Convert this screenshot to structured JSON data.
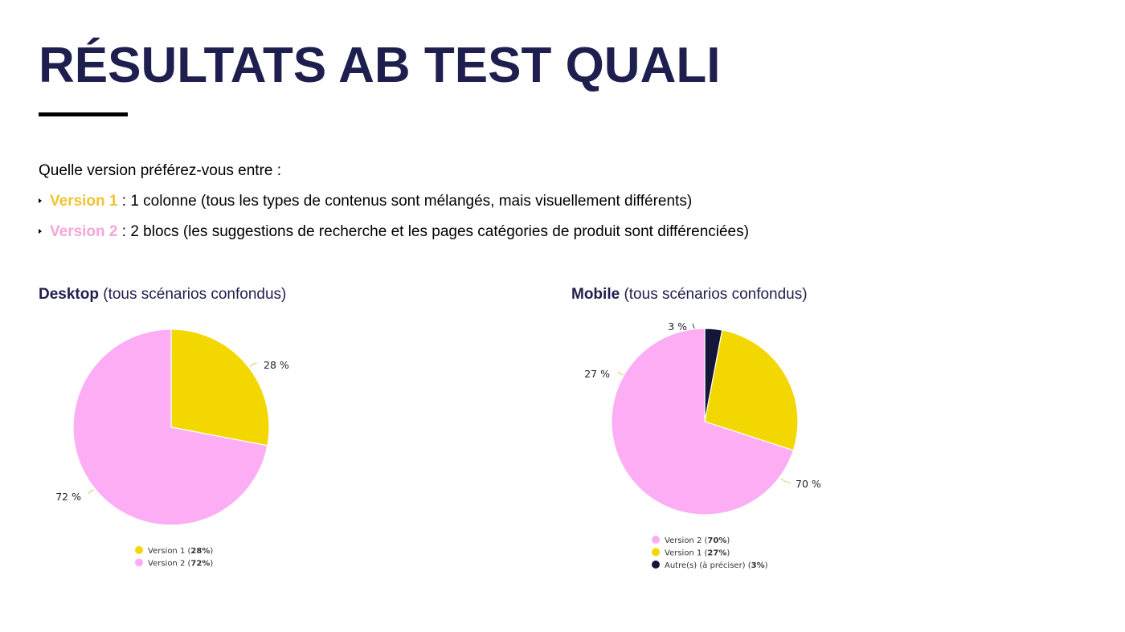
{
  "slide": {
    "title": "RÉSULTATS AB TEST QUALI",
    "question": "Quelle version préférez-vous entre :",
    "options": [
      {
        "label": "Version 1",
        "text": " : 1 colonne (tous les types de contenus sont mélangés, mais visuellement différents)",
        "color": "#f1c232"
      },
      {
        "label": "Version 2",
        "text": " : 2 blocs (les suggestions de recherche et les pages catégories de produit sont différenciées)",
        "color": "#f4a6d7"
      }
    ]
  },
  "colors": {
    "title": "#1f1f4f",
    "version1_slice": "#f2d800",
    "version2_slice": "#fdadf4",
    "autre_slice": "#16163a",
    "leader": "#d9c96a"
  },
  "chart_data": [
    {
      "type": "pie",
      "title_strong": "Desktop",
      "title_rest": " (tous scénarios confondus)",
      "slices": [
        {
          "name": "Version 1",
          "value": 28,
          "label": "28 %",
          "legend": "Version 1 (28%)",
          "color": "#f2d800"
        },
        {
          "name": "Version 2",
          "value": 72,
          "label": "72 %",
          "legend": "Version 2 (72%)",
          "color": "#fdadf4"
        }
      ]
    },
    {
      "type": "pie",
      "title_strong": "Mobile",
      "title_rest": " (tous scénarios confondus)",
      "slices": [
        {
          "name": "Version 2",
          "value": 70,
          "label": "70 %",
          "legend": "Version 2 (70%)",
          "color": "#fdadf4"
        },
        {
          "name": "Version 1",
          "value": 27,
          "label": "27 %",
          "legend": "Version 1 (27%)",
          "color": "#f2d800"
        },
        {
          "name": "Autre(s) (à préciser)",
          "value": 3,
          "label": "3 %",
          "legend": "Autre(s) (à préciser) (3%)",
          "color": "#16163a"
        }
      ]
    }
  ]
}
